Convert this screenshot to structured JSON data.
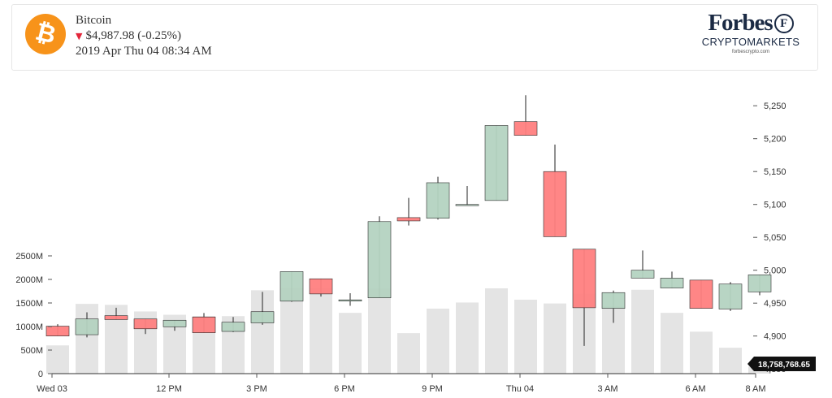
{
  "ticker": {
    "name": "Bitcoin",
    "icon": "bitcoin-icon",
    "price": "$4,987.98 (-0.25%)",
    "timestamp": "2019 Apr Thu 04 08:34 AM",
    "change_direction_icon": "triangle-down-icon"
  },
  "brand": {
    "wordmark": "Forbes",
    "badge_letter": "F",
    "subtitle": "CRYPTOMARKETS",
    "url": "forbescrypto.com"
  },
  "colors": {
    "up": "#b5d3c1",
    "down": "#ff8080",
    "volume": "#e4e4e4",
    "coin": "#f7931a",
    "current_price_bg": "#111111"
  },
  "chart_data": {
    "type": "candlestick",
    "price_axis": {
      "ylim": [
        4850,
        5270
      ],
      "ticks": [
        4850,
        4900,
        4950,
        5000,
        5050,
        5100,
        5150,
        5200,
        5250
      ],
      "tick_labels": [
        "4,850",
        "4,900",
        "4,950",
        "5,000",
        "5,050",
        "5,100",
        "5,150",
        "5,200",
        "5,250"
      ],
      "position": "right"
    },
    "volume_axis": {
      "ylim": [
        0,
        2600
      ],
      "ticks": [
        0,
        500,
        1000,
        1500,
        2000,
        2500
      ],
      "tick_labels": [
        "0",
        "500M",
        "1000M",
        "1500M",
        "2000M",
        "2500M"
      ],
      "position": "left"
    },
    "x_axis": {
      "labels": [
        "Wed 03",
        "12 PM",
        "3 PM",
        "6 PM",
        "9 PM",
        "Thu 04",
        "3 AM",
        "6 AM",
        "8 AM"
      ],
      "label_index": [
        0,
        4,
        7,
        10,
        13,
        16,
        19,
        22,
        24
      ]
    },
    "current_value_label": "18,758,768.65",
    "candles": [
      {
        "o": 4915,
        "h": 4918,
        "l": 4900,
        "c": 4900,
        "v": 600
      },
      {
        "o": 4902,
        "h": 4936,
        "l": 4898,
        "c": 4926,
        "v": 1480
      },
      {
        "o": 4931,
        "h": 4943,
        "l": 4925,
        "c": 4925,
        "v": 1460
      },
      {
        "o": 4926,
        "h": 4926,
        "l": 4903,
        "c": 4911,
        "v": 1320
      },
      {
        "o": 4914,
        "h": 4924,
        "l": 4908,
        "c": 4924,
        "v": 1250
      },
      {
        "o": 4929,
        "h": 4935,
        "l": 4905,
        "c": 4905,
        "v": 1220
      },
      {
        "o": 4907,
        "h": 4929,
        "l": 4906,
        "c": 4921,
        "v": 1220
      },
      {
        "o": 4920,
        "h": 4967,
        "l": 4917,
        "c": 4937,
        "v": 1770
      },
      {
        "o": 4953,
        "h": 4998,
        "l": 4952,
        "c": 4998,
        "v": 1820
      },
      {
        "o": 4987,
        "h": 4987,
        "l": 4960,
        "c": 4964,
        "v": 1820
      },
      {
        "o": 4955,
        "h": 4965,
        "l": 4946,
        "c": 4955,
        "v": 1290
      },
      {
        "o": 4958,
        "h": 5082,
        "l": 4958,
        "c": 5074,
        "v": 1810
      },
      {
        "o": 5080,
        "h": 5110,
        "l": 5068,
        "c": 5075,
        "v": 860
      },
      {
        "o": 5079,
        "h": 5142,
        "l": 5077,
        "c": 5133,
        "v": 1380
      },
      {
        "o": 5100,
        "h": 5128,
        "l": 5099,
        "c": 5100,
        "v": 1510
      },
      {
        "o": 5106,
        "h": 5220,
        "l": 5106,
        "c": 5220,
        "v": 1810
      },
      {
        "o": 5226,
        "h": 5266,
        "l": 5205,
        "c": 5205,
        "v": 1570
      },
      {
        "o": 5150,
        "h": 5191,
        "l": 5051,
        "c": 5051,
        "v": 1490
      },
      {
        "o": 5032,
        "h": 5032,
        "l": 4885,
        "c": 4943,
        "v": 1700
      },
      {
        "o": 4942,
        "h": 4969,
        "l": 4920,
        "c": 4966,
        "v": 1430
      },
      {
        "o": 4988,
        "h": 5030,
        "l": 4988,
        "c": 5000,
        "v": 1780
      },
      {
        "o": 4973,
        "h": 4998,
        "l": 4973,
        "c": 4988,
        "v": 1290
      },
      {
        "o": 4985,
        "h": 4985,
        "l": 4942,
        "c": 4942,
        "v": 890
      },
      {
        "o": 4941,
        "h": 4982,
        "l": 4938,
        "c": 4979,
        "v": 550
      },
      {
        "o": 4967,
        "h": 4993,
        "l": 4962,
        "c": 4993,
        "v": 150
      }
    ]
  }
}
